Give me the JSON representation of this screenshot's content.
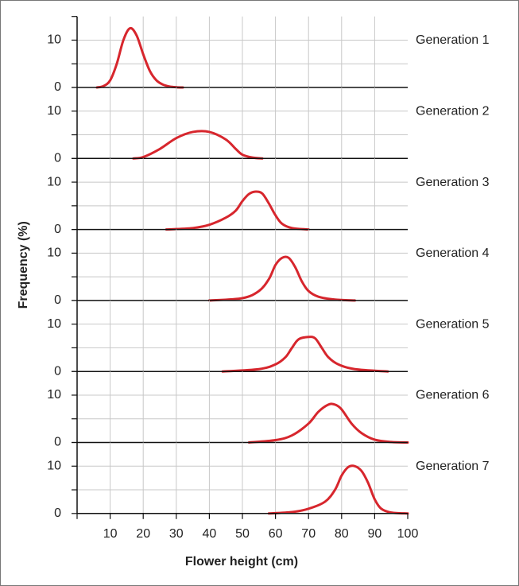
{
  "chart_data": [
    {
      "type": "line",
      "title": "Generation 1",
      "ylabel": "Frequency (%)",
      "color": "#d7262d",
      "ylim": [
        0,
        15
      ],
      "yticks": [
        0,
        10
      ],
      "yminor_ticks": [
        5,
        15
      ],
      "grid": true,
      "x": [
        6,
        8,
        10,
        12,
        14,
        16,
        18,
        20,
        22,
        24,
        26,
        28,
        30,
        32
      ],
      "values": [
        0,
        0.3,
        1.5,
        5,
        10,
        12.5,
        11,
        7,
        3.5,
        1.5,
        0.6,
        0.2,
        0.05,
        0
      ]
    },
    {
      "type": "line",
      "title": "Generation 2",
      "color": "#d7262d",
      "ylim": [
        0,
        15
      ],
      "yticks": [
        0,
        10
      ],
      "yminor_ticks": [
        5,
        15
      ],
      "grid": true,
      "x": [
        17,
        20,
        25,
        30,
        35,
        40,
        45,
        48,
        50,
        53,
        56
      ],
      "values": [
        0,
        0.3,
        2,
        4.3,
        5.6,
        5.6,
        4,
        2,
        0.8,
        0.2,
        0
      ]
    },
    {
      "type": "line",
      "title": "Generation 3",
      "color": "#d7262d",
      "ylim": [
        0,
        15
      ],
      "yticks": [
        0,
        10
      ],
      "yminor_ticks": [
        5,
        15
      ],
      "grid": true,
      "x": [
        27,
        35,
        40,
        45,
        48,
        50,
        52,
        54,
        56,
        58,
        60,
        62,
        65,
        70
      ],
      "values": [
        0,
        0.3,
        1,
        2.5,
        4,
        6,
        7.5,
        8,
        7.6,
        5.5,
        3,
        1.2,
        0.3,
        0
      ]
    },
    {
      "type": "line",
      "title": "Generation 4",
      "color": "#d7262d",
      "ylim": [
        0,
        15
      ],
      "yticks": [
        0,
        10
      ],
      "yminor_ticks": [
        5,
        15
      ],
      "grid": true,
      "x": [
        40,
        50,
        55,
        58,
        60,
        62,
        64,
        66,
        68,
        70,
        73,
        78,
        84
      ],
      "values": [
        0,
        0.5,
        2,
        4.5,
        7.5,
        9,
        9,
        7,
        4,
        2,
        0.8,
        0.2,
        0
      ]
    },
    {
      "type": "line",
      "title": "Generation 5",
      "color": "#d7262d",
      "ylim": [
        0,
        15
      ],
      "yticks": [
        0,
        10
      ],
      "yminor_ticks": [
        5,
        15
      ],
      "grid": true,
      "x": [
        44,
        55,
        60,
        63,
        65,
        67,
        70,
        72,
        74,
        76,
        79,
        84,
        94
      ],
      "values": [
        0,
        0.5,
        1.5,
        3,
        5,
        6.8,
        7.3,
        7,
        5,
        3,
        1.5,
        0.5,
        0
      ]
    },
    {
      "type": "line",
      "title": "Generation 6",
      "color": "#d7262d",
      "ylim": [
        0,
        15
      ],
      "yticks": [
        0,
        10
      ],
      "yminor_ticks": [
        5,
        15
      ],
      "grid": true,
      "x": [
        52,
        60,
        65,
        70,
        73,
        76,
        78,
        80,
        83,
        86,
        90,
        95,
        100
      ],
      "values": [
        0,
        0.5,
        1.5,
        4,
        6.5,
        8,
        8,
        7,
        4,
        2,
        0.6,
        0.1,
        0
      ]
    },
    {
      "type": "line",
      "title": "Generation 7",
      "xlabel": "Flower height (cm)",
      "color": "#d7262d",
      "ylim": [
        0,
        15
      ],
      "yticks": [
        0,
        10
      ],
      "yminor_ticks": [
        5,
        15
      ],
      "grid": true,
      "xlim": [
        0,
        100
      ],
      "xticks": [
        10,
        20,
        30,
        40,
        50,
        60,
        70,
        80,
        90,
        100
      ],
      "x": [
        58,
        65,
        70,
        75,
        78,
        80,
        82,
        84,
        86,
        88,
        90,
        92,
        95,
        100
      ],
      "values": [
        0,
        0.3,
        1,
        2.5,
        5,
        8,
        9.8,
        10,
        9,
        6.5,
        3,
        1,
        0.2,
        0
      ]
    }
  ]
}
